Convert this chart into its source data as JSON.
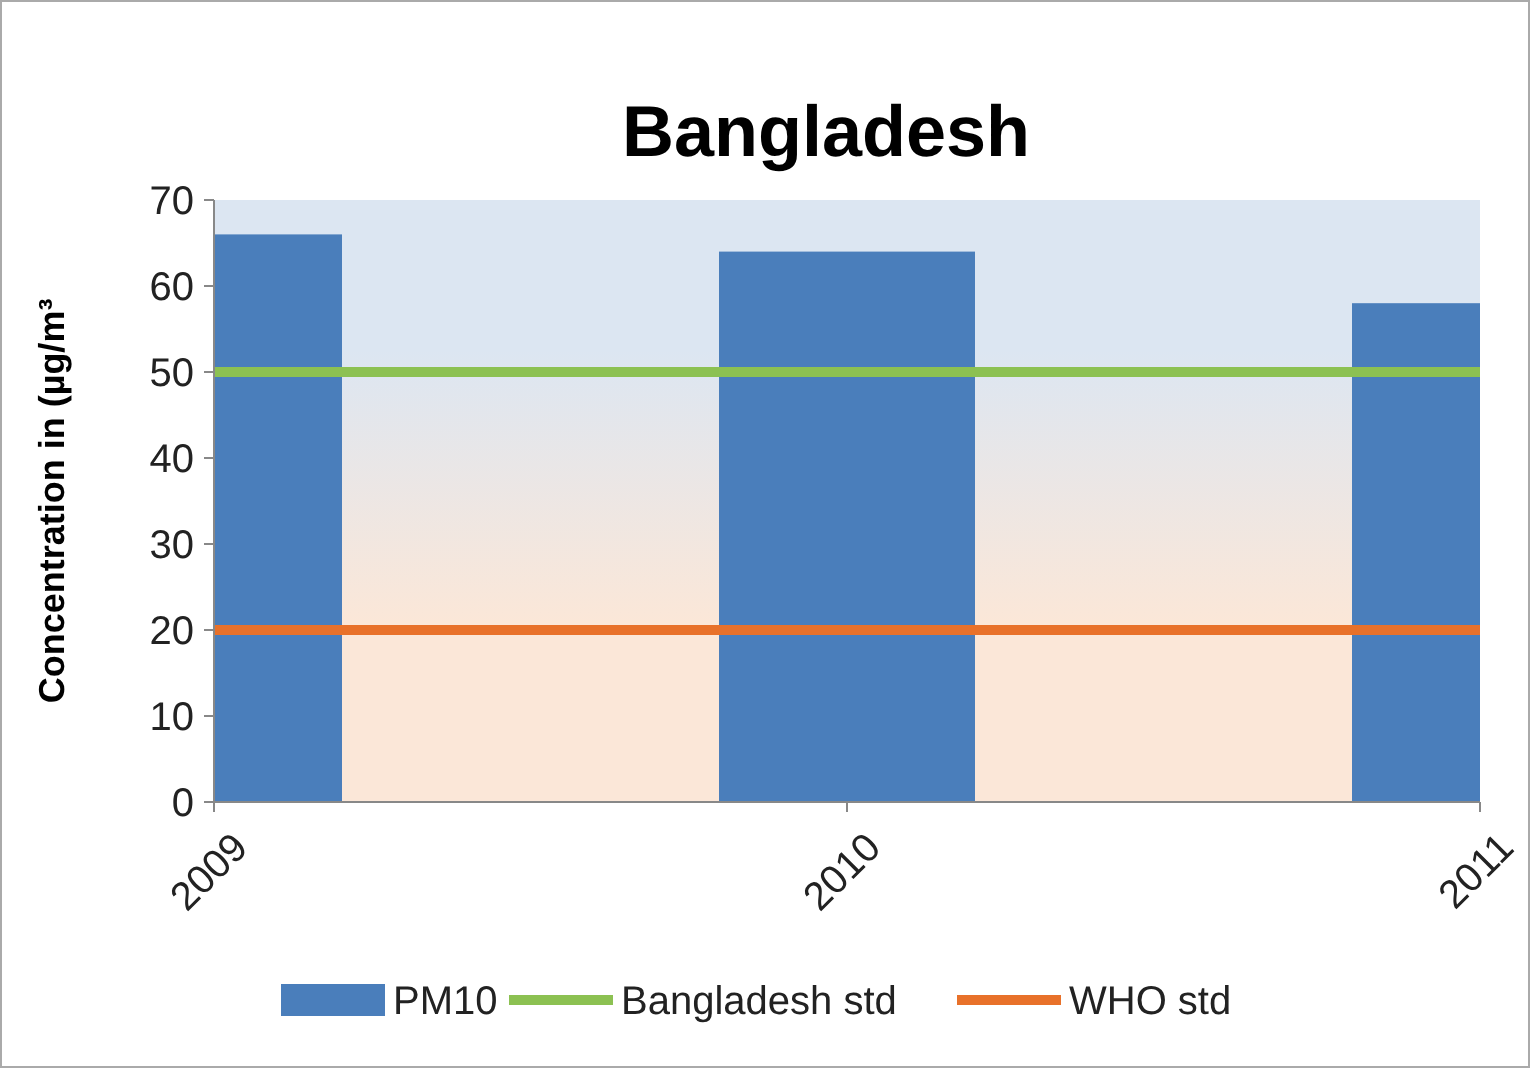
{
  "chart_data": {
    "type": "bar",
    "title": "Bangladesh",
    "ylabel": "Concentration in (µg/m³",
    "categories": [
      "2009",
      "2010",
      "2011"
    ],
    "series": [
      {
        "name": "PM10",
        "color": "#4a7ebb",
        "values": [
          66,
          64,
          58
        ]
      },
      {
        "name": "Bangladesh std",
        "type": "line",
        "color": "#8cc152",
        "values": [
          50,
          50,
          50
        ]
      },
      {
        "name": "WHO std",
        "type": "line",
        "color": "#e8712a",
        "values": [
          20,
          20,
          20
        ]
      }
    ],
    "ylim": [
      0,
      70
    ],
    "yticks": [
      0,
      10,
      20,
      30,
      40,
      50,
      60,
      70
    ],
    "legend": "bottom",
    "grid": false
  }
}
